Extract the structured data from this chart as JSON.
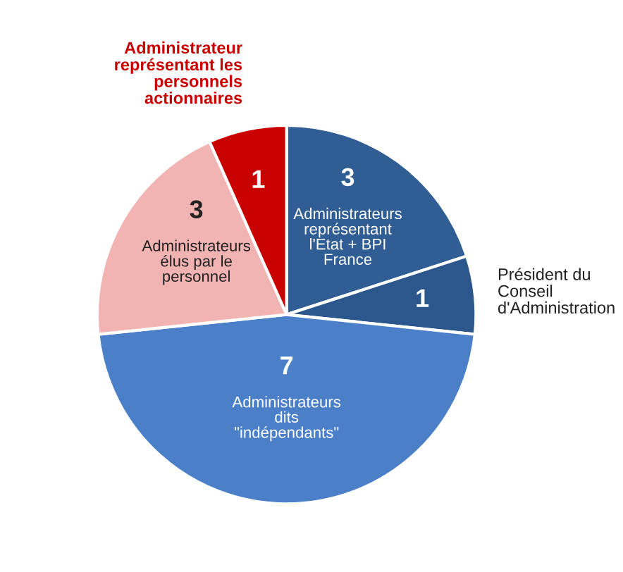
{
  "chart_data": {
    "type": "pie",
    "categories": [
      "Administrateurs\nreprésentant\nl'Etat + BPI\nFrance",
      "Président du\nConseil\nd'Administration",
      "Administrateurs\ndits\n\"indépendants\"",
      "Administrateurs\nélus par le\npersonnel",
      "Administrateur\nreprésentant les\npersonnels\nactionnaires"
    ],
    "values": [
      3,
      1,
      7,
      3,
      1
    ],
    "colors": [
      "#2f5d94",
      "#2b578c",
      "#4b80c9",
      "#f2b3b3",
      "#c80000"
    ],
    "data_labels": true,
    "legend": false
  }
}
